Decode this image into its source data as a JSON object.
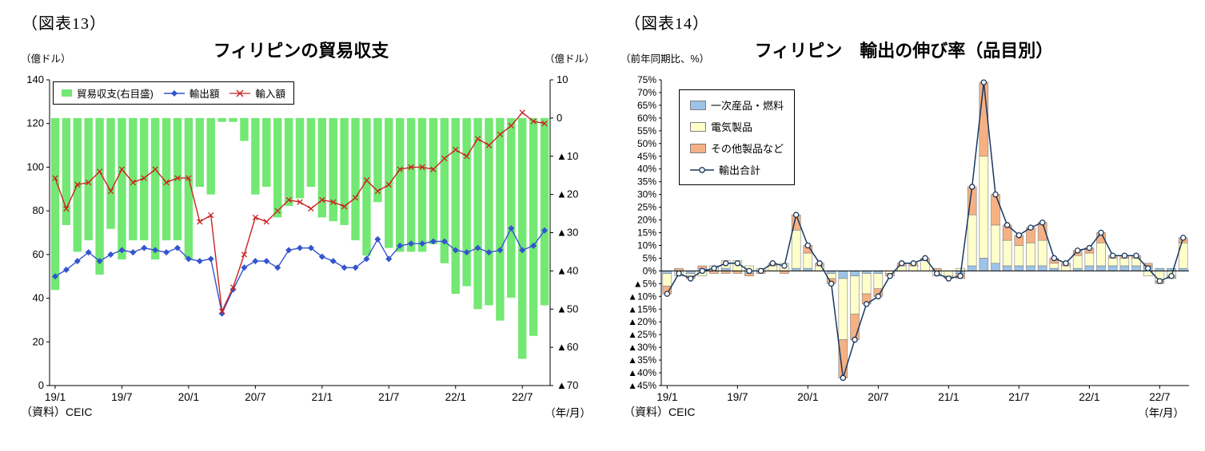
{
  "figure13": {
    "label": "（図表13）",
    "axis_left_unit": "（億ドル）",
    "axis_right_unit": "（億ドル）",
    "source": "（資料）CEIC",
    "x_unit": "（年/月）"
  },
  "figure14": {
    "label": "（図表14）",
    "axis_unit": "（前年同期比、%）",
    "source": "（資料）CEIC",
    "x_unit": "（年/月）"
  },
  "chart_data": [
    {
      "id": "philippines-trade-balance",
      "type": "bar+line-dual-axis",
      "title": "フィリピンの貿易収支",
      "x": [
        "19/1",
        "19/2",
        "19/3",
        "19/4",
        "19/5",
        "19/6",
        "19/7",
        "19/8",
        "19/9",
        "19/10",
        "19/11",
        "19/12",
        "20/1",
        "20/2",
        "20/3",
        "20/4",
        "20/5",
        "20/6",
        "20/7",
        "20/8",
        "20/9",
        "20/10",
        "20/11",
        "20/12",
        "21/1",
        "21/2",
        "21/3",
        "21/4",
        "21/5",
        "21/6",
        "21/7",
        "21/8",
        "21/9",
        "21/10",
        "21/11",
        "21/12",
        "22/1",
        "22/2",
        "22/3",
        "22/4",
        "22/5",
        "22/6",
        "22/7",
        "22/8",
        "22/9"
      ],
      "x_tick_labels": [
        "19/1",
        "19/7",
        "20/1",
        "20/7",
        "21/1",
        "21/7",
        "22/1",
        "22/7"
      ],
      "x_tick_every": 6,
      "left_axis": {
        "min": 0,
        "max": 140,
        "step": 20,
        "unit": "億ドル"
      },
      "right_axis": {
        "min": -70,
        "max": 10,
        "step": 10,
        "unit": "億ドル",
        "negative_format": "triangle"
      },
      "grid": false,
      "legend_position": "top-left-inside",
      "series": [
        {
          "name": "貿易収支(右目盛)",
          "type": "bar",
          "axis": "right",
          "color": "#73E873",
          "values": [
            -45,
            -28,
            -35,
            -32,
            -41,
            -29,
            -37,
            -32,
            -32,
            -37,
            -32,
            -32,
            -37,
            -18,
            -20,
            -1,
            -1,
            -6,
            -20,
            -18,
            -26,
            -23,
            -21,
            -18,
            -26,
            -27,
            -28,
            -32,
            -36,
            -22,
            -34,
            -35,
            -35,
            -35,
            -33,
            -38,
            -46,
            -44,
            -50,
            -49,
            -53,
            -47,
            -63,
            -57,
            -49
          ]
        },
        {
          "name": "輸出額",
          "type": "line",
          "axis": "left",
          "color": "#3355CC",
          "marker": "diamond",
          "values": [
            50,
            53,
            57,
            61,
            57,
            60,
            62,
            61,
            63,
            62,
            61,
            63,
            58,
            57,
            58,
            33,
            44,
            54,
            57,
            57,
            54,
            62,
            63,
            63,
            59,
            57,
            54,
            54,
            58,
            67,
            58,
            64,
            65,
            65,
            66,
            66,
            62,
            61,
            63,
            61,
            62,
            72,
            62,
            64,
            71
          ]
        },
        {
          "name": "輸入額",
          "type": "line",
          "axis": "left",
          "color": "#CC2222",
          "marker": "x",
          "values": [
            95,
            81,
            92,
            93,
            98,
            89,
            99,
            93,
            95,
            99,
            93,
            95,
            95,
            75,
            78,
            34,
            45,
            60,
            77,
            75,
            80,
            85,
            84,
            81,
            85,
            84,
            82,
            86,
            94,
            89,
            92,
            99,
            100,
            100,
            99,
            104,
            108,
            105,
            113,
            110,
            115,
            119,
            125,
            121,
            120
          ]
        }
      ]
    },
    {
      "id": "philippines-export-growth-by-item",
      "type": "stacked-bar+line",
      "title": "フィリピン　輸出の伸び率（品目別）",
      "x": [
        "19/1",
        "19/2",
        "19/3",
        "19/4",
        "19/5",
        "19/6",
        "19/7",
        "19/8",
        "19/9",
        "19/10",
        "19/11",
        "19/12",
        "20/1",
        "20/2",
        "20/3",
        "20/4",
        "20/5",
        "20/6",
        "20/7",
        "20/8",
        "20/9",
        "20/10",
        "20/11",
        "20/12",
        "21/1",
        "21/2",
        "21/3",
        "21/4",
        "21/5",
        "21/6",
        "21/7",
        "21/8",
        "21/9",
        "21/10",
        "21/11",
        "21/12",
        "22/1",
        "22/2",
        "22/3",
        "22/4",
        "22/5",
        "22/6",
        "22/7",
        "22/8",
        "22/9"
      ],
      "x_tick_labels": [
        "19/1",
        "19/7",
        "20/1",
        "20/7",
        "21/1",
        "21/7",
        "22/1",
        "22/7"
      ],
      "x_tick_every": 6,
      "y_axis": {
        "min": -45,
        "max": 75,
        "step": 5,
        "unit": "%",
        "negative_format": "triangle"
      },
      "grid": false,
      "legend_position": "top-left-inside",
      "series": [
        {
          "name": "一次産品・燃料",
          "type": "bar-stacked",
          "color": "#9DC3E6",
          "border": "#7F7F7F",
          "values": [
            -1,
            0,
            -1,
            1,
            0,
            1,
            0,
            -1,
            0,
            0,
            0,
            1,
            1,
            0,
            -1,
            -3,
            -2,
            -1,
            -1,
            0,
            0,
            0,
            0,
            0,
            0,
            -1,
            2,
            5,
            3,
            2,
            2,
            2,
            2,
            1,
            0,
            1,
            2,
            2,
            2,
            2,
            2,
            2,
            1,
            1,
            1
          ]
        },
        {
          "name": "電気製品",
          "type": "bar-stacked",
          "color": "#FFFFCC",
          "border": "#7F7F7F",
          "values": [
            -5,
            -2,
            -1,
            -2,
            2,
            3,
            4,
            2,
            1,
            2,
            3,
            15,
            6,
            2,
            -2,
            -24,
            -15,
            -8,
            -6,
            -1,
            2,
            2,
            4,
            -2,
            -2,
            1,
            20,
            40,
            15,
            10,
            8,
            9,
            10,
            2,
            2,
            5,
            5,
            9,
            3,
            3,
            3,
            -2,
            -4,
            -2,
            10
          ]
        },
        {
          "name": "その他製品など",
          "type": "bar-stacked",
          "color": "#F5B183",
          "border": "#7F7F7F",
          "values": [
            -3,
            1,
            -1,
            1,
            -1,
            -1,
            -1,
            -1,
            -1,
            1,
            -1,
            6,
            3,
            1,
            -2,
            -15,
            -10,
            -4,
            -3,
            -1,
            1,
            1,
            1,
            1,
            -1,
            -2,
            11,
            29,
            12,
            6,
            4,
            6,
            7,
            2,
            1,
            2,
            2,
            4,
            1,
            1,
            1,
            1,
            -1,
            -1,
            2
          ]
        },
        {
          "name": "輸出合計",
          "type": "line",
          "color": "#17375E",
          "marker": "circle-open",
          "values": [
            -9,
            -1,
            -3,
            0,
            1,
            3,
            3,
            0,
            0,
            3,
            2,
            22,
            10,
            3,
            -5,
            -42,
            -27,
            -13,
            -10,
            -2,
            3,
            3,
            5,
            -1,
            -3,
            -2,
            33,
            74,
            30,
            18,
            14,
            17,
            19,
            5,
            3,
            8,
            9,
            15,
            6,
            6,
            6,
            1,
            -4,
            -2,
            13
          ]
        }
      ]
    }
  ]
}
